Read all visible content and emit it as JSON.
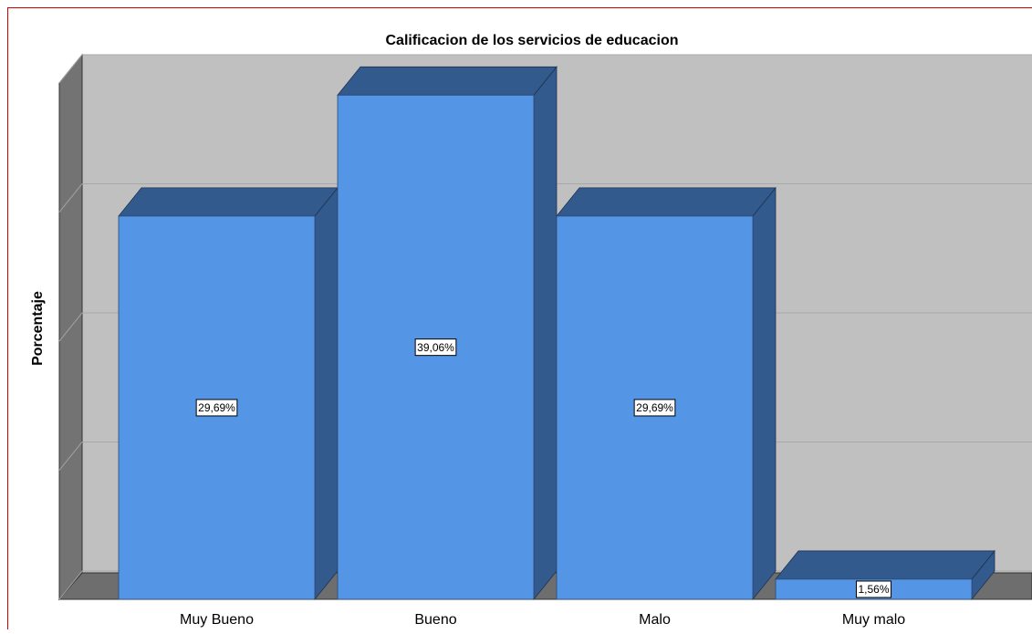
{
  "chart_data": {
    "type": "bar3d",
    "title": "Calificacion de los servicios de educacion",
    "y_label": "Porcentaje",
    "categories": [
      "Muy Bueno",
      "Bueno",
      "Malo",
      "Muy malo"
    ],
    "values": [
      29.69,
      39.06,
      29.69,
      1.56
    ],
    "value_labels": [
      "29,69%",
      "39,06%",
      "29,69%",
      "1,56%"
    ],
    "color": "#5595e5",
    "ylim": [
      0,
      40
    ],
    "yticks": [
      0,
      10,
      20,
      30,
      40
    ],
    "grid": true
  }
}
